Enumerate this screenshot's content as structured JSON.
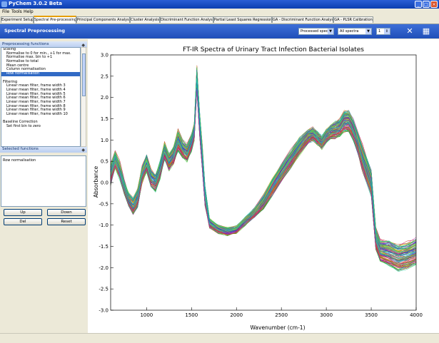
{
  "window": {
    "title": "PyChem 3.0.2 Beta",
    "min": "_",
    "max": "□",
    "close": "×"
  },
  "menu": [
    "File",
    "Tools",
    "Help"
  ],
  "tabs": [
    {
      "label": "Experiment Setup"
    },
    {
      "label": "Spectral Pre-processing",
      "active": true
    },
    {
      "label": "Principal Components Analysis"
    },
    {
      "label": "Cluster Analysis"
    },
    {
      "label": "Discriminant Function Analysis"
    },
    {
      "label": "Partial Least Squares Regression"
    },
    {
      "label": "GA - Discriminant Function Analysis"
    },
    {
      "label": "GA - PLSR Calibration"
    }
  ],
  "toolbar": {
    "title": "Spectral Preprocessing",
    "spectra_select": "Processed spect",
    "sample_select": "All spectra",
    "spin_value": "1"
  },
  "left": {
    "functions_header": "Preprocessing functions",
    "functions": [
      {
        "text": "Scaling",
        "kind": "group"
      },
      {
        "text": "Normalise to 0 for min., +1 for max.",
        "kind": "item"
      },
      {
        "text": "Normalise max. bin to +1",
        "kind": "item"
      },
      {
        "text": "Normalise to total",
        "kind": "item"
      },
      {
        "text": "Mean centre",
        "kind": "item"
      },
      {
        "text": "Column normalisation",
        "kind": "item"
      },
      {
        "text": "Row normalisation",
        "kind": "item",
        "selected": true
      },
      {
        "text": "",
        "kind": "blank"
      },
      {
        "text": "Filtering",
        "kind": "group"
      },
      {
        "text": "Linear mean filter, frame width 3",
        "kind": "item"
      },
      {
        "text": "Linear mean filter, frame width 4",
        "kind": "item"
      },
      {
        "text": "Linear mean filter, frame width 5",
        "kind": "item"
      },
      {
        "text": "Linear mean filter, frame width 6",
        "kind": "item"
      },
      {
        "text": "Linear mean filter, frame width 7",
        "kind": "item"
      },
      {
        "text": "Linear mean filter, frame width 8",
        "kind": "item"
      },
      {
        "text": "Linear mean filter, frame width 9",
        "kind": "item"
      },
      {
        "text": "Linear mean filter, frame width 10",
        "kind": "item"
      },
      {
        "text": "",
        "kind": "blank"
      },
      {
        "text": "Baseline Correction",
        "kind": "group"
      },
      {
        "text": "Set first bin to zero",
        "kind": "item"
      }
    ],
    "selected_header": "Selected functions",
    "selected": [
      "Row normalisation"
    ],
    "buttons": {
      "up": "Up",
      "down": "Down",
      "del": "Del",
      "reset": "Reset"
    }
  },
  "chart_data": {
    "type": "line",
    "title": "FT-IR Spectra of Urinary Tract Infection Bacterial Isolates",
    "xlabel": "Wavenumber (cm-1)",
    "ylabel": "Absorbance",
    "xlim": [
      600,
      4000
    ],
    "ylim": [
      -3.0,
      3.0
    ],
    "xticks": [
      1000,
      1500,
      2000,
      2500,
      3000,
      3500,
      4000
    ],
    "yticks": [
      -3.0,
      -2.5,
      -2.0,
      -1.5,
      -1.0,
      -0.5,
      0.0,
      0.5,
      1.0,
      1.5,
      2.0,
      2.5,
      3.0
    ],
    "grid": false,
    "series_count": 120,
    "x": [
      600,
      650,
      700,
      750,
      800,
      850,
      900,
      950,
      1000,
      1050,
      1100,
      1150,
      1200,
      1250,
      1300,
      1350,
      1400,
      1450,
      1500,
      1530,
      1560,
      1590,
      1620,
      1650,
      1700,
      1800,
      1900,
      2000,
      2100,
      2200,
      2300,
      2400,
      2500,
      2600,
      2700,
      2800,
      2850,
      2900,
      2950,
      3000,
      3050,
      3100,
      3150,
      3200,
      3250,
      3300,
      3350,
      3400,
      3450,
      3500,
      3550,
      3600,
      3700,
      3800,
      3900,
      4000
    ],
    "mean": [
      0.2,
      0.55,
      0.3,
      -0.1,
      -0.4,
      -0.55,
      -0.35,
      0.2,
      0.45,
      0.1,
      0.0,
      0.3,
      0.75,
      0.5,
      0.65,
      1.0,
      0.8,
      0.7,
      0.95,
      1.2,
      2.45,
      1.4,
      0.6,
      -0.3,
      -0.95,
      -1.1,
      -1.15,
      -1.1,
      -0.9,
      -0.7,
      -0.45,
      -0.1,
      0.25,
      0.55,
      0.85,
      1.1,
      1.15,
      1.05,
      0.95,
      1.1,
      1.2,
      1.25,
      1.3,
      1.45,
      1.45,
      1.25,
      0.95,
      0.6,
      0.3,
      0.0,
      -1.3,
      -1.6,
      -1.65,
      -1.75,
      -1.7,
      -1.6
    ],
    "spread": [
      0.25,
      0.2,
      0.2,
      0.15,
      0.15,
      0.2,
      0.2,
      0.2,
      0.2,
      0.2,
      0.2,
      0.2,
      0.2,
      0.2,
      0.2,
      0.25,
      0.2,
      0.2,
      0.2,
      0.2,
      0.3,
      0.3,
      0.3,
      0.25,
      0.1,
      0.08,
      0.08,
      0.08,
      0.08,
      0.1,
      0.15,
      0.2,
      0.2,
      0.2,
      0.2,
      0.15,
      0.15,
      0.15,
      0.15,
      0.15,
      0.15,
      0.2,
      0.2,
      0.25,
      0.25,
      0.25,
      0.25,
      0.3,
      0.3,
      0.3,
      0.25,
      0.25,
      0.3,
      0.3,
      0.3,
      0.3
    ]
  }
}
